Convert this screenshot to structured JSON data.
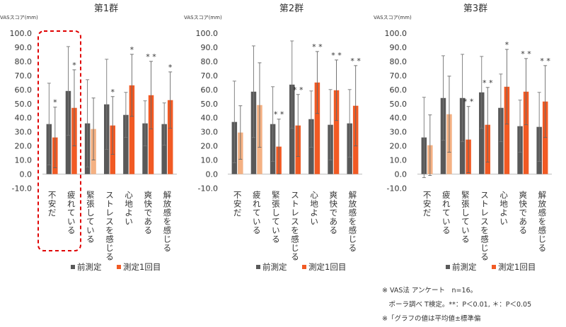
{
  "chart_data": [
    {
      "type": "bar",
      "title": "第1群",
      "ylabel": "VASスコア(mm)",
      "ylim": [
        -10,
        100
      ],
      "yticks": [
        "100.0",
        "90.0",
        "80.0",
        "70.0",
        "60.0",
        "50.0",
        "40.0",
        "30.0",
        "20.0",
        "10.0",
        "0.0",
        "-10.0"
      ],
      "categories": [
        "不安だ",
        "疲れている",
        "緊張している",
        "ストレスを感じる",
        "心地よい",
        "爽快である",
        "解放感を感じる"
      ],
      "series": [
        {
          "name": "前測定",
          "values": [
            35.5,
            59,
            36,
            49.5,
            42,
            36,
            35.5
          ],
          "errors": [
            29,
            31.5,
            31,
            32,
            16,
            16,
            15
          ]
        },
        {
          "name": "測定1回目",
          "values": [
            26,
            47,
            32,
            34.5,
            63,
            56,
            52.5
          ],
          "errors": [
            21.5,
            27,
            22,
            20.5,
            22,
            24,
            20
          ]
        }
      ],
      "significance": [
        "*",
        "*",
        "",
        "*",
        "*",
        "* *",
        "*"
      ],
      "legend_position": "bottom",
      "highlight_box": [
        0,
        1
      ]
    },
    {
      "type": "bar",
      "title": "第2群",
      "ylabel": "VASスコア(mm)",
      "ylim": [
        -10,
        100
      ],
      "yticks": [
        "100.0",
        "90.0",
        "80.0",
        "70.0",
        "60.0",
        "50.0",
        "40.0",
        "30.0",
        "20.0",
        "10.0",
        "0.0",
        "-10.0"
      ],
      "categories": [
        "不安だ",
        "疲れている",
        "緊張している",
        "ストレスを感じる",
        "心地よい",
        "爽快である",
        "解放感を感じる"
      ],
      "series": [
        {
          "name": "前測定",
          "values": [
            37,
            58.5,
            35.5,
            63.5,
            39,
            35,
            36
          ],
          "errors": [
            29,
            32.5,
            26.5,
            31,
            20,
            25,
            24
          ]
        },
        {
          "name": "測定1回目",
          "values": [
            29.5,
            49,
            19.5,
            34.5,
            65,
            59.5,
            48.5
          ],
          "errors": [
            19,
            30,
            19.5,
            22,
            22,
            21.5,
            28.5
          ]
        }
      ],
      "significance": [
        "",
        "",
        "* *",
        "* *",
        "* *",
        "* *",
        "* *"
      ],
      "legend_position": "bottom"
    },
    {
      "type": "bar",
      "title": "第3群",
      "ylabel": "VASスコア(mm)",
      "ylim": [
        -10,
        100
      ],
      "yticks": [
        "100.0",
        "90.0",
        "80.0",
        "70.0",
        "60.0",
        "50.0",
        "40.0",
        "30.0",
        "20.0",
        "10.0",
        "0.0",
        "-10.0"
      ],
      "categories": [
        "不安だ",
        "疲れている",
        "緊張している",
        "ストレスを感じる",
        "心地よい",
        "爽快である",
        "解放感を感じる"
      ],
      "series": [
        {
          "name": "前測定",
          "values": [
            26,
            54,
            54,
            58,
            47,
            34,
            33.5
          ],
          "errors": [
            28.5,
            30,
            31,
            25.5,
            24,
            18.5,
            24.5
          ]
        },
        {
          "name": "測定1回目",
          "values": [
            20.5,
            42.5,
            24.5,
            35,
            62,
            58.5,
            51.5
          ],
          "errors": [
            21.5,
            27,
            23.5,
            26.5,
            26.5,
            23.5,
            25.5
          ]
        }
      ],
      "significance": [
        "",
        "",
        "* *",
        "* *",
        "*",
        "* *",
        "* *"
      ],
      "legend_position": "bottom"
    }
  ],
  "colors": {
    "pre": "#595959",
    "post1": "#f15a24",
    "post1_light": "#f4b183",
    "highlight": "#e00000"
  },
  "footnotes": {
    "line1": "※ VAS法 アンケート　n=16。",
    "line2": "　ポーラ調べ T検定。**：P＜0.01, ＊：P＜0.05",
    "line3": "※「グラフの値は平均値±標準偏"
  }
}
